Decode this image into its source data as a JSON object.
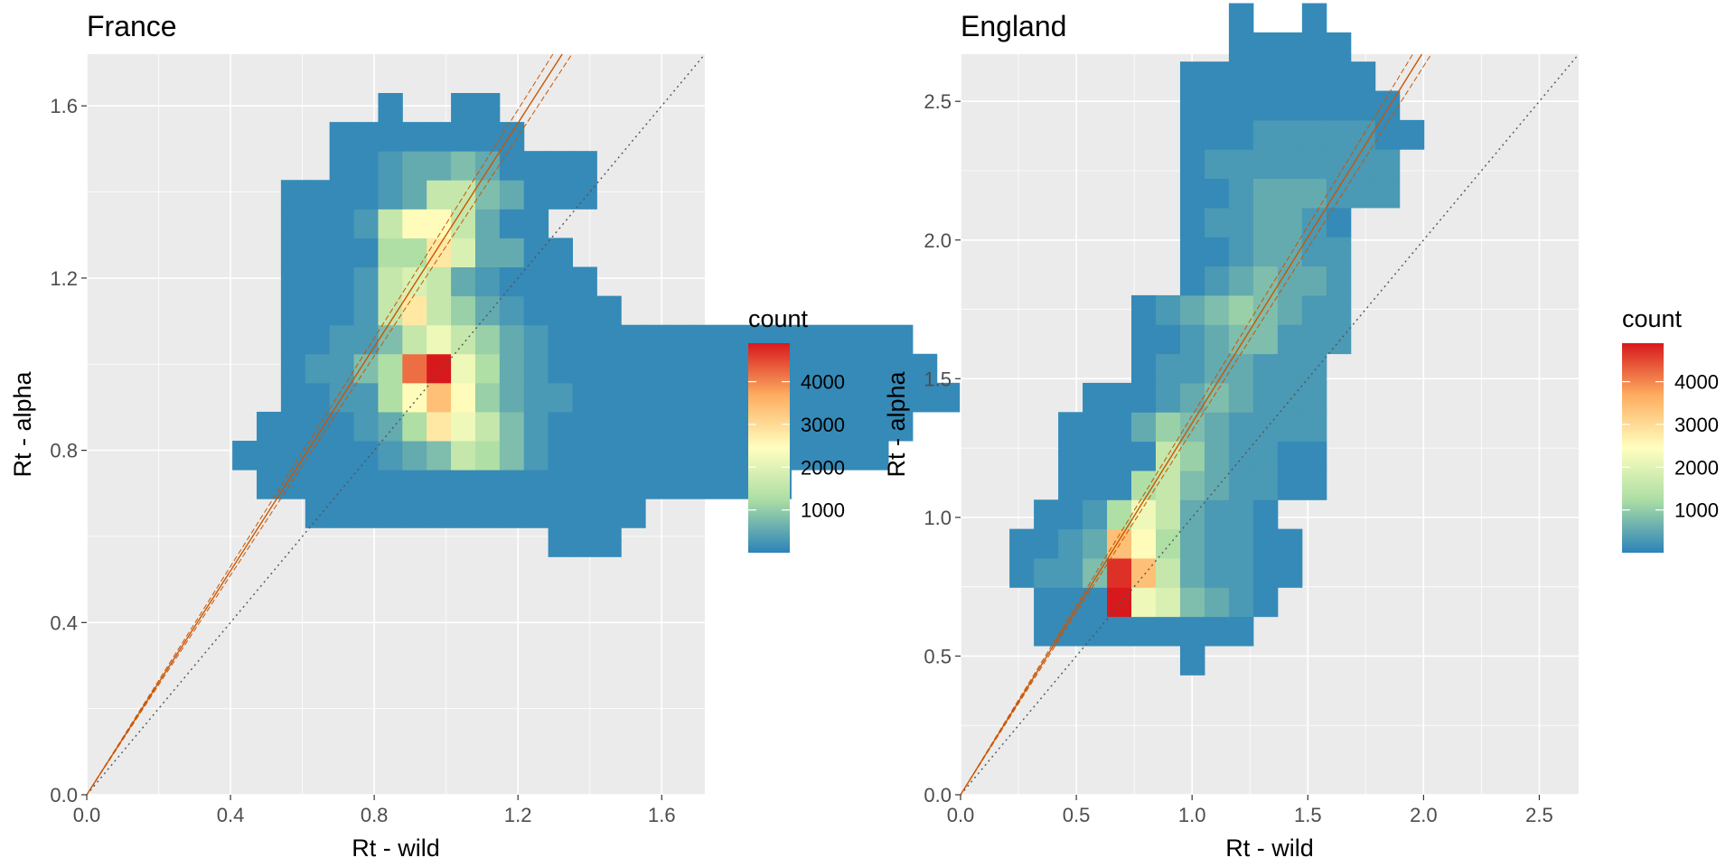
{
  "chart_data": [
    {
      "type": "heatmap",
      "title": "France",
      "xlabel": "Rt - wild",
      "ylabel": "Rt - alpha",
      "xlim": [
        0,
        1.72
      ],
      "ylim": [
        0,
        1.72
      ],
      "xticks": [
        0.0,
        0.4,
        0.8,
        1.2,
        1.6
      ],
      "yticks": [
        0.0,
        0.4,
        0.8,
        1.2,
        1.6
      ],
      "xtick_labels": [
        "0.0",
        "0.4",
        "0.8",
        "1.2",
        "1.6"
      ],
      "ytick_labels": [
        "0.0",
        "0.4",
        "0.8",
        "1.2",
        "1.6"
      ],
      "bin_width": [
        0.0676,
        0.0673
      ],
      "x_origin": 0.27,
      "y_origin": 0.553,
      "rows_from_bottom": [
        "...............aaa..............",
        ".....aaaaaaaaaaaaaa.............",
        "...aaaaaaaaaaaaaaaaaaaaaa.......",
        "..aaaaaabcdgfdbaaaaaaaaaaaaaa...",
        "...aaaabcfkigdbaaaaaaaaaaaaaaa..",
        "....aabbfjmjecbbaaaaaaaaaaaaaaaa",
        "....abbdfnoifcbaaaaaaaaaaaaaaaa.",
        "....aabbdgigecbaaaaaaaaaaaaaaa..",
        "....aaabgkgecbaaaa.............",
        "....aaabghgcbaaaa..............",
        "....aaaaffkhccaa...............",
        "....aaabgjjgcaa................",
        "....aaaabcggdcaaa..............",
        "......aabccdcaaaa..............",
        "......aaaaaaaa.................",
        "........a..aa..................",
        "...............................",
        "...............................",
        "..............................."
      ],
      "fit_line": {
        "slope": 1.3,
        "intercept": 0.0
      },
      "identity_line": true
    },
    {
      "type": "heatmap",
      "title": "England",
      "xlabel": "Rt - wild",
      "ylabel": "Rt - alpha",
      "xlim": [
        0,
        2.67
      ],
      "ylim": [
        0,
        2.67
      ],
      "xticks": [
        0.0,
        0.5,
        1.0,
        1.5,
        2.0,
        2.5
      ],
      "yticks": [
        0.0,
        0.5,
        1.0,
        1.5,
        2.0,
        2.5
      ],
      "xtick_labels": [
        "0.0",
        "0.5",
        "1.0",
        "1.5",
        "2.0",
        "2.5"
      ],
      "ytick_labels": [
        "0.0",
        "0.5",
        "1.0",
        "1.5",
        "2.0",
        "2.5"
      ],
      "bin_width": [
        0.1053,
        0.1053
      ],
      "x_origin": 0.106,
      "y_origin": 0.432,
      "rows_from_bottom": [
        "........a.........",
        "..aaaaaaaaa.......",
        "..aaaoihdcba......",
        ".abbdqmgcbbaa.....",
        ".aabcmjfcbbaa.....",
        "..aabfigcbba......",
        "...aaafgdcbbaa....",
        "...aaaagecbbaa....",
        "...aaacedcbbbb....",
        "....aaabcdcbbb....",
        "......abbccbbb....",
        "......aabcddbbb...",
        "......abcdedcbb...",
        "........abcdccb...",
        "........aabccbb...",
        "........abbccba...",
        "........aabcccbbb.",
        "........abbbbbbbb.",
        "........aaabbbbbaa",
        "........aaaaaaaaa.",
        "........aaaaaaaa..",
        "..........aaaaa...",
        "..........a..a....",
        "................."
      ],
      "fit_line": {
        "slope": 1.34,
        "intercept": 0.0
      },
      "identity_line": true
    }
  ],
  "legend": {
    "title": "count",
    "ticks": [
      1000,
      2000,
      3000,
      4000
    ],
    "tick_labels": [
      "1000",
      "2000",
      "3000",
      "4000"
    ],
    "max": 4900,
    "colors": [
      "#2b83ba",
      "#abdda4",
      "#ffffbf",
      "#fdae61",
      "#d7191c"
    ],
    "bin_levels": "a=100,b=300,c=550,d=800,e=1050,f=1300,g=1600,h=1900,i=2200,j=2500,k=2800,l=3100,m=3400,n=4200,o=4900,p=4100,q=4700"
  },
  "colors": {
    "panel_bg": "#ebebeb",
    "grid": "#ffffff",
    "fit_line": "#cc5500",
    "identity_line": "#555555"
  }
}
